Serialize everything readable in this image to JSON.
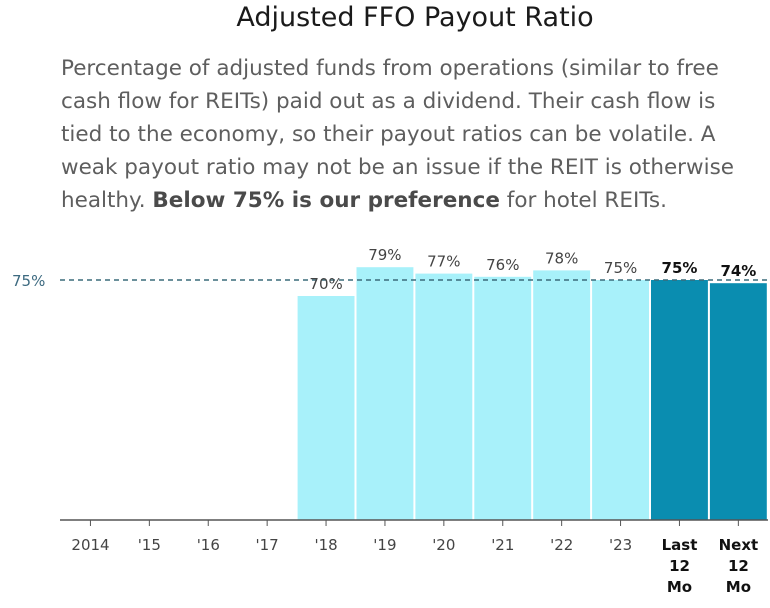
{
  "title": "Adjusted FFO Payout Ratio",
  "description": {
    "part1": "Percentage of adjusted funds from operations (similar to free cash flow for REITs) paid out as a dividend. Their cash flow is tied to the economy, so their payout ratios can be volatile. A weak payout ratio may not be an issue if the REIT is otherwise healthy. ",
    "bold": "Below 75% is our preference",
    "part2": " for hotel REITs."
  },
  "colors": {
    "historical": "#a8f1fa",
    "projected": "#0a8db0",
    "reference_line": "#3a6b7a"
  },
  "chart_data": {
    "type": "bar",
    "categories": [
      "2014",
      "'15",
      "'16",
      "'17",
      "'18",
      "'19",
      "'20",
      "'21",
      "'22",
      "'23",
      "Last 12 Mo",
      "Next 12 Mo"
    ],
    "tick_labels": [
      [
        "2014"
      ],
      [
        "'15"
      ],
      [
        "'16"
      ],
      [
        "'17"
      ],
      [
        "'18"
      ],
      [
        "'19"
      ],
      [
        "'20"
      ],
      [
        "'21"
      ],
      [
        "'22"
      ],
      [
        "'23"
      ],
      [
        "Last",
        "12",
        "Mo"
      ],
      [
        "Next",
        "12",
        "Mo"
      ]
    ],
    "values": [
      null,
      null,
      null,
      null,
      70,
      79,
      77,
      76,
      78,
      75,
      75,
      74
    ],
    "value_labels": [
      "",
      "",
      "",
      "",
      "70%",
      "79%",
      "77%",
      "76%",
      "78%",
      "75%",
      "75%",
      "74%"
    ],
    "highlighted": [
      false,
      false,
      false,
      false,
      false,
      false,
      false,
      false,
      false,
      false,
      true,
      true
    ],
    "reference_line": {
      "value": 75,
      "label": "75%",
      "style": "dashed"
    },
    "ylim": [
      0,
      100
    ],
    "xlabel": "",
    "ylabel": "",
    "grid": false
  }
}
